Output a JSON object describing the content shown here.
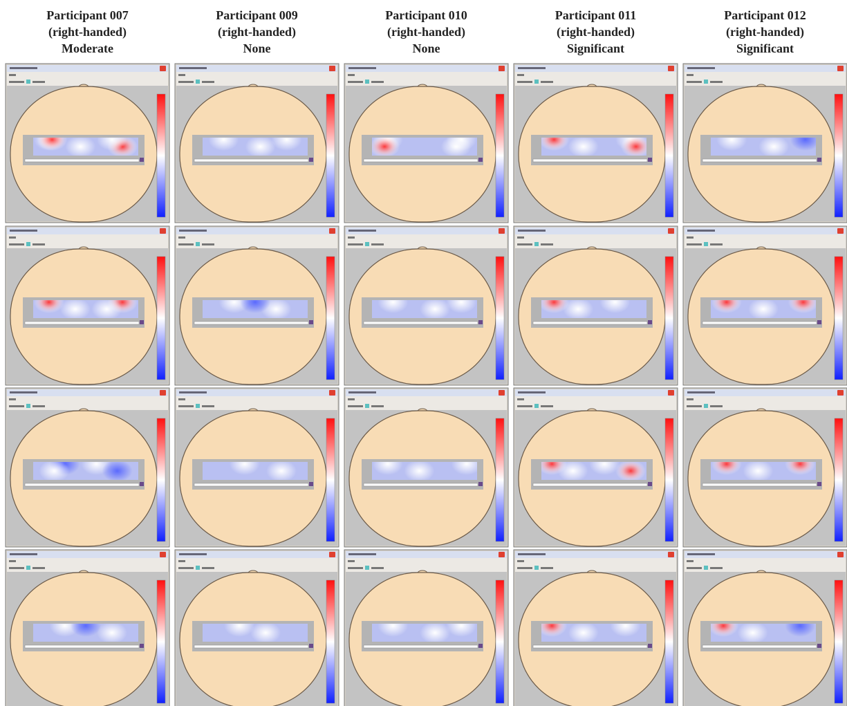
{
  "columns": [
    {
      "participant": "Participant 007",
      "handedness": "(right-handed)",
      "rating": "Moderate"
    },
    {
      "participant": "Participant 009",
      "handedness": "(right-handed)",
      "rating": "None"
    },
    {
      "participant": "Participant 010",
      "handedness": "(right-handed)",
      "rating": "None"
    },
    {
      "participant": "Participant 011",
      "handedness": "(right-handed)",
      "rating": "Significant"
    },
    {
      "participant": "Participant 012",
      "handedness": "(right-handed)",
      "rating": "Significant"
    }
  ]
}
